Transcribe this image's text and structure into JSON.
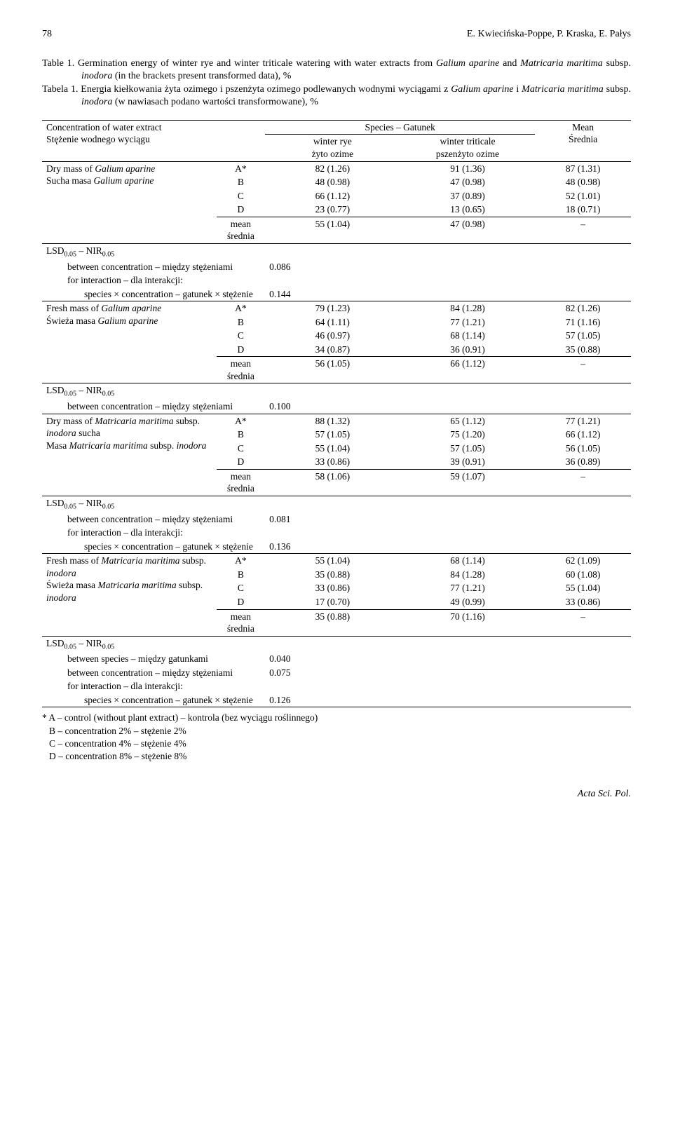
{
  "header": {
    "page_no": "78",
    "authors": "E. Kwiecińska-Poppe, P. Kraska, E. Pałys"
  },
  "caption_en": {
    "label": "Table 1.",
    "text": "Germination energy of winter rye and winter triticale watering with water extracts from",
    "line2": "Galium aparine",
    "line2b": " and ",
    "line2c": "Matricaria maritima",
    "line2d": " subsp. ",
    "line2e": "inodora",
    "line2f": " (in the brackets present transformed data), %"
  },
  "caption_pl": {
    "label": "Tabela 1.",
    "text_a": "Energia kiełkowania żyta ozimego i pszenżyta ozimego podlewanych wodnymi wyciągami z ",
    "text_b": "Galium aparine",
    "text_c": " i ",
    "text_d": "Matricaria maritima",
    "text_e": " subsp. ",
    "text_f": "inodora",
    "text_g": " (w nawiasach podano wartości transformowane), %"
  },
  "col_headers": {
    "conc_en": "Concentration of water extract",
    "conc_pl": "Stężenie wodnego wyciągu",
    "species": "Species – Gatunek",
    "rye_en": "winter rye",
    "rye_pl": "żyto ozime",
    "trit_en": "winter triticale",
    "trit_pl": "pszenżyto ozime",
    "mean_en": "Mean",
    "mean_pl": "Średnia"
  },
  "sections": [
    {
      "label_en_a": "Dry mass of ",
      "label_en_ital": "Galium aparine",
      "label_pl_a": "Sucha masa ",
      "label_pl_ital": "Galium aparine",
      "rows": [
        {
          "k": "A*",
          "v1": "82 (1.26)",
          "v2": "91 (1.36)",
          "v3": "87 (1.31)"
        },
        {
          "k": "B",
          "v1": "48 (0.98)",
          "v2": "47 (0.98)",
          "v3": "48 (0.98)"
        },
        {
          "k": "C",
          "v1": "66 (1.12)",
          "v2": "37 (0.89)",
          "v3": "52 (1.01)"
        },
        {
          "k": "D",
          "v1": "23 (0.77)",
          "v2": "13 (0.65)",
          "v3": "18 (0.71)"
        }
      ],
      "mean": {
        "k_en": "mean",
        "k_pl": "średnia",
        "v1": "55 (1.04)",
        "v2": "47 (0.98)",
        "v3": "–"
      },
      "lsd": {
        "head": "LSD",
        "sub": "0.05",
        "dash": " – NIR",
        "sub2": "0.05",
        "lines": [
          {
            "t": "between concentration – między stężeniami",
            "v": "0.086"
          },
          {
            "t": "for interaction – dla interakcji:",
            "v": ""
          },
          {
            "t": "species × concentration – gatunek × stężenie",
            "v": "0.144",
            "indent": true
          }
        ]
      }
    },
    {
      "label_en_a": "Fresh mass of ",
      "label_en_ital": "Galium aparine",
      "label_pl_a": "Świeża masa ",
      "label_pl_ital": "Galium aparine",
      "rows": [
        {
          "k": "A*",
          "v1": "79 (1.23)",
          "v2": "84 (1.28)",
          "v3": "82 (1.26)"
        },
        {
          "k": "B",
          "v1": "64 (1.11)",
          "v2": "77 (1.21)",
          "v3": "71 (1.16)"
        },
        {
          "k": "C",
          "v1": "46 (0.97)",
          "v2": "68 (1.14)",
          "v3": "57 (1.05)"
        },
        {
          "k": "D",
          "v1": "34 (0.87)",
          "v2": "36 (0.91)",
          "v3": "35 (0.88)"
        }
      ],
      "mean": {
        "k_en": "mean",
        "k_pl": "średnia",
        "v1": "56 (1.05)",
        "v2": "66 (1.12)",
        "v3": "–"
      },
      "lsd": {
        "head": "LSD",
        "sub": "0.05",
        "dash": " – NIR",
        "sub2": "0.05",
        "lines": [
          {
            "t": "between concentration – między stężeniami",
            "v": "0.100"
          }
        ]
      }
    },
    {
      "label_en_a": "Dry mass of ",
      "label_en_ital": "Matricaria maritima",
      "label_en_b": " subsp. ",
      "label_en_ital2": "inodora",
      "label_en_c": " sucha",
      "label_pl_a": "Masa ",
      "label_pl_ital": "Matricaria maritima",
      "label_pl_b": " subsp. ",
      "label_pl_ital2": "inodora",
      "rows": [
        {
          "k": "A*",
          "v1": "88 (1.32)",
          "v2": "65 (1.12)",
          "v3": "77 (1.21)"
        },
        {
          "k": "B",
          "v1": "57 (1.05)",
          "v2": "75 (1.20)",
          "v3": "66 (1.12)"
        },
        {
          "k": "C",
          "v1": "55 (1.04)",
          "v2": "57 (1.05)",
          "v3": "56 (1.05)"
        },
        {
          "k": "D",
          "v1": "33 (0.86)",
          "v2": "39 (0.91)",
          "v3": "36 (0.89)"
        }
      ],
      "mean": {
        "k_en": "mean",
        "k_pl": "średnia",
        "v1": "58 (1.06)",
        "v2": "59 (1.07)",
        "v3": "–"
      },
      "lsd": {
        "head": "LSD",
        "sub": "0.05",
        "dash": " – NIR",
        "sub2": "0.05",
        "lines": [
          {
            "t": "between concentration – między stężeniami",
            "v": "0.081"
          },
          {
            "t": "for interaction – dla interakcji:",
            "v": ""
          },
          {
            "t": "species × concentration – gatunek × stężenie",
            "v": "0.136",
            "indent": true
          }
        ]
      }
    },
    {
      "label_en_a": "Fresh mass of ",
      "label_en_ital": "Matricaria maritima",
      "label_en_b": " subsp. ",
      "label_en_ital2": "inodora",
      "label_pl_a": "Świeża masa ",
      "label_pl_ital": "Matricaria maritima",
      "label_pl_b": " subsp. ",
      "label_pl_ital2": "inodora",
      "rows": [
        {
          "k": "A*",
          "v1": "55 (1.04)",
          "v2": "68 (1.14)",
          "v3": "62 (1.09)"
        },
        {
          "k": "B",
          "v1": "35 (0.88)",
          "v2": "84 (1.28)",
          "v3": "60 (1.08)"
        },
        {
          "k": "C",
          "v1": "33 (0.86)",
          "v2": "77 (1.21)",
          "v3": "55 (1.04)"
        },
        {
          "k": "D",
          "v1": "17 (0.70)",
          "v2": "49 (0.99)",
          "v3": "33 (0.86)"
        }
      ],
      "mean": {
        "k_en": "mean",
        "k_pl": "średnia",
        "v1": "35 (0.88)",
        "v2": "70 (1.16)",
        "v3": "–"
      },
      "lsd": {
        "head": "LSD",
        "sub": "0.05",
        "dash": " – NIR",
        "sub2": "0.05",
        "lines": [
          {
            "t": "between species – między gatunkami",
            "v": "0.040"
          },
          {
            "t": "between concentration – między stężeniami",
            "v": "0.075"
          },
          {
            "t": "for interaction – dla interakcji:",
            "v": ""
          },
          {
            "t": "species × concentration – gatunek × stężenie",
            "v": "0.126",
            "indent": true
          }
        ]
      }
    }
  ],
  "footnotes": {
    "a": "* A – control (without plant extract) – kontrola (bez wyciągu roślinnego)",
    "b": "B – concentration 2% – stężenie 2%",
    "c": "C – concentration 4% – stężenie 4%",
    "d": "D – concentration 8% – stężenie 8%"
  },
  "footer": "Acta Sci. Pol."
}
